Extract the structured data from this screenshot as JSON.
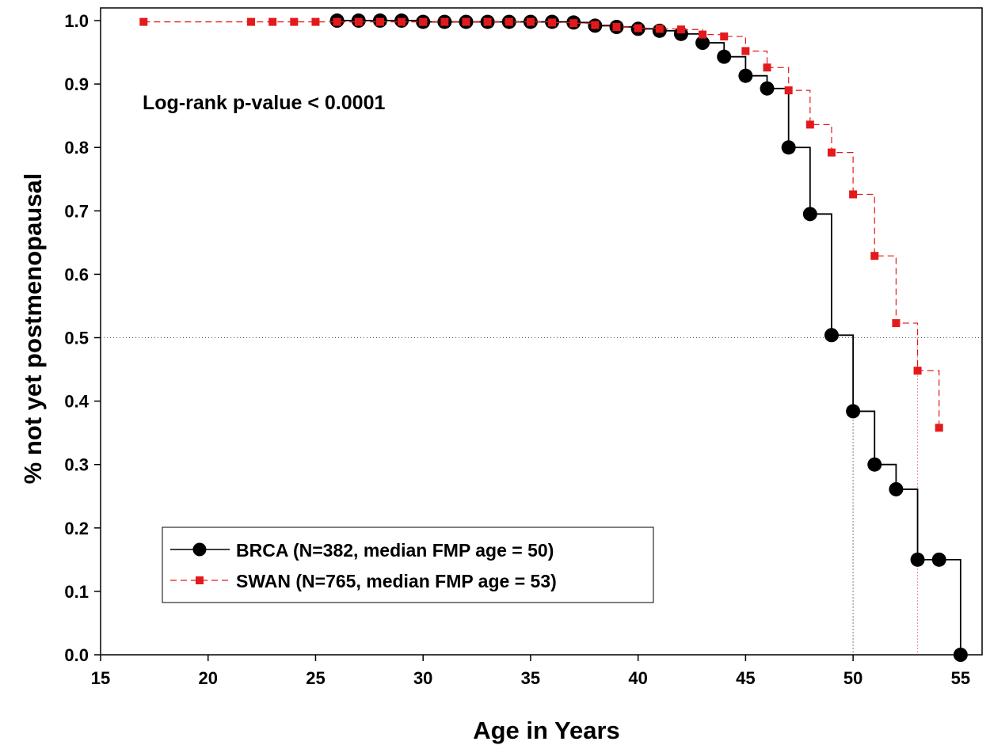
{
  "chart_data": {
    "type": "line",
    "subtype": "kaplan-meier step",
    "annotation": "Log-rank p-value < 0.0001",
    "xlabel": "Age in Years",
    "ylabel": "% not yet postmenopausal",
    "xlim": [
      15,
      56
    ],
    "ylim": [
      0,
      1.02
    ],
    "xticks": [
      "15",
      "20",
      "25",
      "30",
      "35",
      "40",
      "45",
      "50",
      "55"
    ],
    "yticks": [
      "0.0",
      "0.1",
      "0.2",
      "0.3",
      "0.4",
      "0.5",
      "0.6",
      "0.7",
      "0.8",
      "0.9",
      "1.0"
    ],
    "grid": false,
    "legend_position": "bottom-left",
    "reference_line_y": 0.5,
    "median_lines_x": [
      50,
      53
    ],
    "series": [
      {
        "name": "BRCA (N=382, median FMP age = 50)",
        "color": "#000000",
        "marker": "circle",
        "line_style": "solid",
        "x": [
          26,
          27,
          28,
          29,
          30,
          31,
          32,
          33,
          34,
          35,
          36,
          37,
          38,
          39,
          40,
          41,
          42,
          43,
          44,
          45,
          46,
          47,
          48,
          49,
          50,
          51,
          52,
          53,
          54,
          55
        ],
        "y": [
          1.0,
          1.0,
          1.0,
          1.0,
          0.998,
          0.998,
          0.998,
          0.998,
          0.998,
          0.998,
          0.998,
          0.997,
          0.992,
          0.99,
          0.987,
          0.984,
          0.979,
          0.965,
          0.943,
          0.913,
          0.893,
          0.8,
          0.695,
          0.504,
          0.384,
          0.3,
          0.261,
          0.15,
          0.15,
          0.0
        ]
      },
      {
        "name": "SWAN (N=765, median FMP age = 53)",
        "color": "#e31a1c",
        "marker": "square",
        "line_style": "dashed",
        "x": [
          17,
          22,
          23,
          24,
          25,
          26,
          27,
          28,
          29,
          30,
          31,
          32,
          33,
          34,
          35,
          36,
          37,
          38,
          39,
          40,
          41,
          42,
          43,
          44,
          45,
          46,
          47,
          48,
          49,
          50,
          51,
          52,
          53,
          54
        ],
        "y": [
          0.998,
          0.998,
          0.998,
          0.998,
          0.998,
          0.998,
          0.998,
          0.998,
          0.998,
          0.998,
          0.998,
          0.998,
          0.998,
          0.998,
          0.998,
          0.997,
          0.996,
          0.993,
          0.99,
          0.988,
          0.987,
          0.986,
          0.978,
          0.975,
          0.952,
          0.926,
          0.89,
          0.836,
          0.792,
          0.726,
          0.629,
          0.523,
          0.448,
          0.358
        ]
      }
    ]
  }
}
